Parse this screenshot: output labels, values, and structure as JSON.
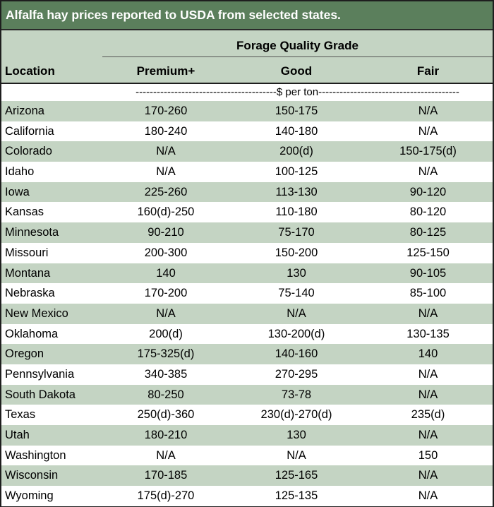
{
  "title": "Alfalfa hay prices reported to USDA from selected states.",
  "header": {
    "group_label": "Forage Quality Grade",
    "location_label": "Location",
    "columns": [
      "Premium+",
      "Good",
      "Fair"
    ]
  },
  "units_label": "----------------------------------------$ per ton----------------------------------------",
  "rows": [
    {
      "location": "Arizona",
      "premium": "170-260",
      "good": "150-175",
      "fair": "N/A"
    },
    {
      "location": "California",
      "premium": "180-240",
      "good": "140-180",
      "fair": "N/A"
    },
    {
      "location": "Colorado",
      "premium": "N/A",
      "good": "200(d)",
      "fair": "150-175(d)"
    },
    {
      "location": "Idaho",
      "premium": "N/A",
      "good": "100-125",
      "fair": "N/A"
    },
    {
      "location": "Iowa",
      "premium": "225-260",
      "good": "113-130",
      "fair": "90-120"
    },
    {
      "location": "Kansas",
      "premium": "160(d)-250",
      "good": "110-180",
      "fair": "80-120"
    },
    {
      "location": "Minnesota",
      "premium": "90-210",
      "good": "75-170",
      "fair": "80-125"
    },
    {
      "location": "Missouri",
      "premium": "200-300",
      "good": "150-200",
      "fair": "125-150"
    },
    {
      "location": "Montana",
      "premium": "140",
      "good": "130",
      "fair": "90-105"
    },
    {
      "location": "Nebraska",
      "premium": "170-200",
      "good": "75-140",
      "fair": "85-100"
    },
    {
      "location": "New Mexico",
      "premium": "N/A",
      "good": "N/A",
      "fair": "N/A"
    },
    {
      "location": "Oklahoma",
      "premium": "200(d)",
      "good": "130-200(d)",
      "fair": "130-135"
    },
    {
      "location": "Oregon",
      "premium": "175-325(d)",
      "good": "140-160",
      "fair": "140"
    },
    {
      "location": "Pennsylvania",
      "premium": "340-385",
      "good": "270-295",
      "fair": "N/A"
    },
    {
      "location": "South Dakota",
      "premium": "80-250",
      "good": "73-78",
      "fair": "N/A"
    },
    {
      "location": "Texas",
      "premium": "250(d)-360",
      "good": "230(d)-270(d)",
      "fair": "235(d)"
    },
    {
      "location": "Utah",
      "premium": "180-210",
      "good": "130",
      "fair": "N/A"
    },
    {
      "location": "Washington",
      "premium": "N/A",
      "good": "N/A",
      "fair": "150"
    },
    {
      "location": "Wisconsin",
      "premium": "170-185",
      "good": "125-165",
      "fair": "N/A"
    },
    {
      "location": "Wyoming",
      "premium": "175(d)-270",
      "good": "125-135",
      "fair": "N/A"
    }
  ],
  "colors": {
    "title_bg": "#5b7f5c",
    "header_bg": "#c4d4c3",
    "shade_row": "#c4d4c3",
    "text": "#000000"
  }
}
